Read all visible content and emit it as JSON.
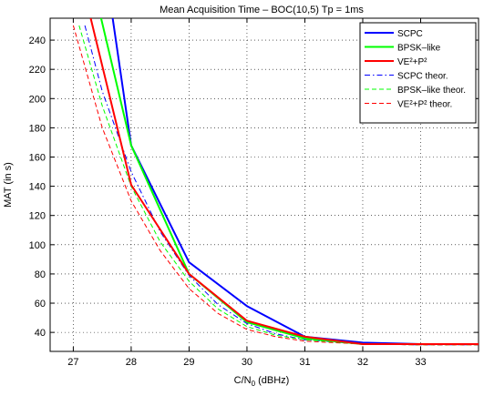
{
  "chart_data": {
    "type": "line",
    "title": "Mean Acquisition Time – BOC(10,5) Tp = 1ms",
    "xlabel": "C/N",
    "xlabel_sub": "0",
    "xlabel_unit": " (dBHz)",
    "ylabel": "MAT (in s)",
    "xlim": [
      26.6,
      34
    ],
    "ylim": [
      27,
      255
    ],
    "xticks": [
      27,
      28,
      29,
      30,
      31,
      32,
      33
    ],
    "yticks": [
      40,
      60,
      80,
      100,
      120,
      140,
      160,
      180,
      200,
      220,
      240
    ],
    "grid": true,
    "legend_position": "top-right",
    "series": [
      {
        "name": "SCPC",
        "color": "#0000ff",
        "style": "solid",
        "width": 2,
        "x": [
          27.68,
          28,
          29,
          30,
          31,
          32,
          33,
          34
        ],
        "y": [
          255,
          168,
          88,
          58,
          37,
          33,
          32,
          32
        ]
      },
      {
        "name": "BPSK–like",
        "color": "#00ff00",
        "style": "solid",
        "width": 2,
        "x": [
          27.48,
          28,
          29,
          30,
          31,
          32,
          33,
          34
        ],
        "y": [
          255,
          168,
          80,
          47,
          36,
          32,
          32,
          32
        ]
      },
      {
        "name": "VE²+P²",
        "color": "#ff0000",
        "style": "solid",
        "width": 2,
        "x": [
          27.3,
          28,
          29,
          30,
          31,
          32,
          33,
          34
        ],
        "y": [
          255,
          141,
          80,
          48,
          37,
          32,
          32,
          32
        ]
      },
      {
        "name": "SCPC theor.",
        "color": "#0000ff",
        "style": "dashdot",
        "width": 1,
        "x": [
          27.2,
          27.5,
          28,
          28.5,
          29,
          29.5,
          30,
          30.5,
          31,
          32,
          33,
          34
        ],
        "y": [
          250,
          205,
          150,
          109,
          79,
          59,
          46,
          39,
          35,
          32,
          31.5,
          31.5
        ]
      },
      {
        "name": "BPSK–like theor.",
        "color": "#00ff00",
        "style": "dashed",
        "width": 1,
        "x": [
          27.1,
          27.5,
          28,
          28.5,
          29,
          29.5,
          30,
          30.5,
          31,
          32,
          33,
          34
        ],
        "y": [
          250,
          195,
          140,
          102,
          75,
          56,
          44,
          38,
          35,
          32,
          31.5,
          31.5
        ]
      },
      {
        "name": "VE²+P² theor.",
        "color": "#ff0000",
        "style": "dashed",
        "width": 1,
        "x": [
          27,
          27.5,
          28,
          28.5,
          29,
          29.5,
          30,
          30.5,
          31,
          32,
          33,
          34
        ],
        "y": [
          250,
          180,
          130,
          96,
          70,
          53,
          42,
          37,
          34,
          32,
          31.5,
          31.5
        ]
      }
    ]
  }
}
